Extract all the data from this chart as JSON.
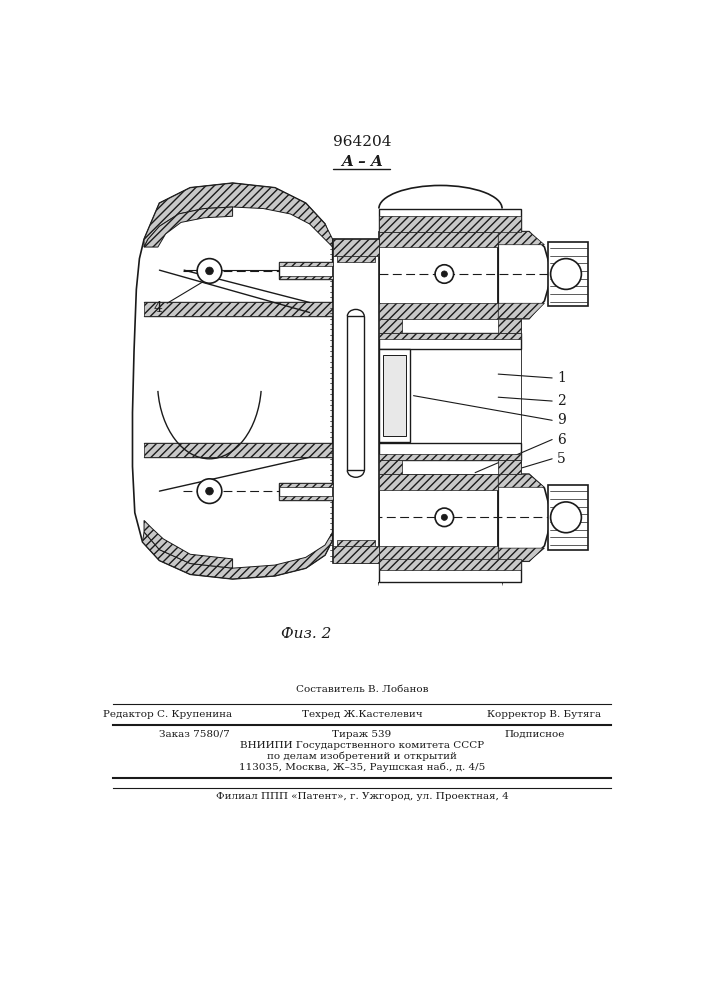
{
  "patent_num": "964204",
  "section": "A – A",
  "fig_label": "Физ. 2",
  "bg": "#ffffff",
  "lc": "#1a1a1a",
  "footer": {
    "line1_center": "Составитель В. Лобанов",
    "line2_left": "Редактор С. Крупенина",
    "line2_center": "Техред Ж.Кастелевич",
    "line2_right": "Корректор В. Бутяга",
    "line3_left": "Заказ 7580/7",
    "line3_center": "Тираж 539",
    "line3_right": "Подписное",
    "line4": "ВНИИПИ Государственного комитета СССР",
    "line5": "по делам изобретений и открытий",
    "line6": "113035, Москва, Ж–35, Раушская наб., д. 4/5",
    "line7": "Филиал ППП «Патент», г. Ужгород, ул. Проектная, 4"
  }
}
